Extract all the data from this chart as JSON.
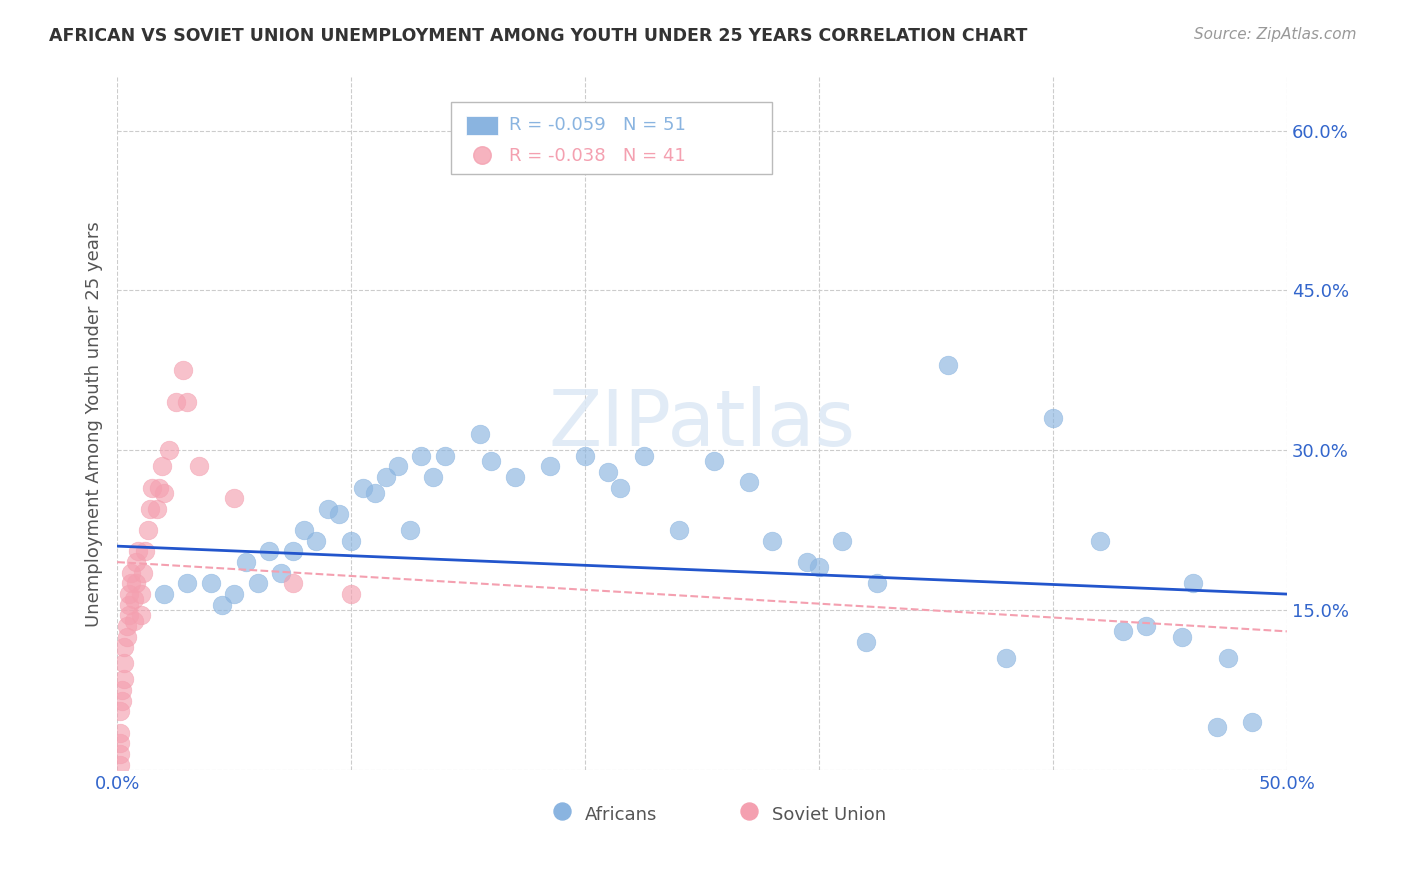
{
  "title": "AFRICAN VS SOVIET UNION UNEMPLOYMENT AMONG YOUTH UNDER 25 YEARS CORRELATION CHART",
  "source": "Source: ZipAtlas.com",
  "ylabel": "Unemployment Among Youth under 25 years",
  "xlim": [
    0.0,
    0.5
  ],
  "ylim": [
    0.0,
    0.65
  ],
  "yticks": [
    0.0,
    0.15,
    0.3,
    0.45,
    0.6
  ],
  "ytick_labels": [
    "",
    "15.0%",
    "30.0%",
    "45.0%",
    "60.0%"
  ],
  "xticks": [
    0.0,
    0.1,
    0.2,
    0.3,
    0.4,
    0.5
  ],
  "xtick_labels": [
    "0.0%",
    "",
    "",
    "",
    "",
    "50.0%"
  ],
  "legend_african": "R = -0.059   N = 51",
  "legend_soviet": "R = -0.038   N = 41",
  "african_color": "#8ab4e0",
  "soviet_color": "#f4a0b0",
  "trendline_african_color": "#2255cc",
  "trendline_soviet_color": "#f4a0b0",
  "grid_color": "#cccccc",
  "african_x": [
    0.02,
    0.03,
    0.04,
    0.045,
    0.05,
    0.055,
    0.06,
    0.065,
    0.07,
    0.075,
    0.08,
    0.085,
    0.09,
    0.095,
    0.1,
    0.105,
    0.11,
    0.115,
    0.12,
    0.125,
    0.13,
    0.135,
    0.14,
    0.155,
    0.16,
    0.17,
    0.185,
    0.2,
    0.21,
    0.215,
    0.225,
    0.24,
    0.255,
    0.27,
    0.28,
    0.295,
    0.31,
    0.325,
    0.355,
    0.42,
    0.44,
    0.455,
    0.46,
    0.475,
    0.485,
    0.3,
    0.32,
    0.38,
    0.4,
    0.43,
    0.47
  ],
  "african_y": [
    0.165,
    0.175,
    0.175,
    0.155,
    0.165,
    0.195,
    0.175,
    0.205,
    0.185,
    0.205,
    0.225,
    0.215,
    0.245,
    0.24,
    0.215,
    0.265,
    0.26,
    0.275,
    0.285,
    0.225,
    0.295,
    0.275,
    0.295,
    0.315,
    0.29,
    0.275,
    0.285,
    0.295,
    0.28,
    0.265,
    0.295,
    0.225,
    0.29,
    0.27,
    0.215,
    0.195,
    0.215,
    0.175,
    0.38,
    0.215,
    0.135,
    0.125,
    0.175,
    0.105,
    0.045,
    0.19,
    0.12,
    0.105,
    0.33,
    0.13,
    0.04
  ],
  "soviet_x": [
    0.001,
    0.001,
    0.001,
    0.001,
    0.001,
    0.002,
    0.002,
    0.003,
    0.003,
    0.003,
    0.004,
    0.004,
    0.005,
    0.005,
    0.005,
    0.006,
    0.006,
    0.007,
    0.007,
    0.008,
    0.008,
    0.009,
    0.01,
    0.01,
    0.011,
    0.012,
    0.013,
    0.014,
    0.015,
    0.017,
    0.018,
    0.019,
    0.02,
    0.022,
    0.025,
    0.028,
    0.03,
    0.035,
    0.05,
    0.075,
    0.1
  ],
  "soviet_y": [
    0.005,
    0.015,
    0.025,
    0.035,
    0.055,
    0.065,
    0.075,
    0.085,
    0.1,
    0.115,
    0.125,
    0.135,
    0.145,
    0.155,
    0.165,
    0.175,
    0.185,
    0.14,
    0.16,
    0.175,
    0.195,
    0.205,
    0.145,
    0.165,
    0.185,
    0.205,
    0.225,
    0.245,
    0.265,
    0.245,
    0.265,
    0.285,
    0.26,
    0.3,
    0.345,
    0.375,
    0.345,
    0.285,
    0.255,
    0.175,
    0.165
  ]
}
